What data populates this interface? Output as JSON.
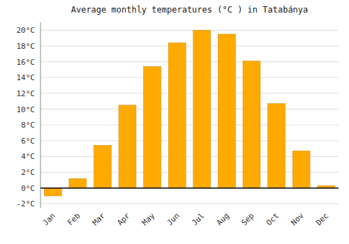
{
  "chart_data": {
    "type": "bar",
    "title": "Average monthly temperatures (°C ) in Tatabánya",
    "categories": [
      "Jan",
      "Feb",
      "Mar",
      "Apr",
      "May",
      "Jun",
      "Jul",
      "Aug",
      "Sep",
      "Oct",
      "Nov",
      "Dec"
    ],
    "values": [
      -1.0,
      1.2,
      5.4,
      10.5,
      15.4,
      18.4,
      20.0,
      19.5,
      16.1,
      10.7,
      4.7,
      0.3
    ],
    "color": "#FFAA00",
    "ylim": [
      -2.5,
      21
    ],
    "yticks": [
      {
        "value": -2,
        "label": "-2°C"
      },
      {
        "value": 0,
        "label": "0°C"
      },
      {
        "value": 2,
        "label": "2°C"
      },
      {
        "value": 4,
        "label": "4°C"
      },
      {
        "value": 6,
        "label": "6°C"
      },
      {
        "value": 8,
        "label": "8°C"
      },
      {
        "value": 10,
        "label": "10°C"
      },
      {
        "value": 12,
        "label": "12°C"
      },
      {
        "value": 14,
        "label": "14°C"
      },
      {
        "value": 16,
        "label": "16°C"
      },
      {
        "value": 18,
        "label": "18°C"
      },
      {
        "value": 20,
        "label": "20°C"
      }
    ],
    "grid": true
  }
}
